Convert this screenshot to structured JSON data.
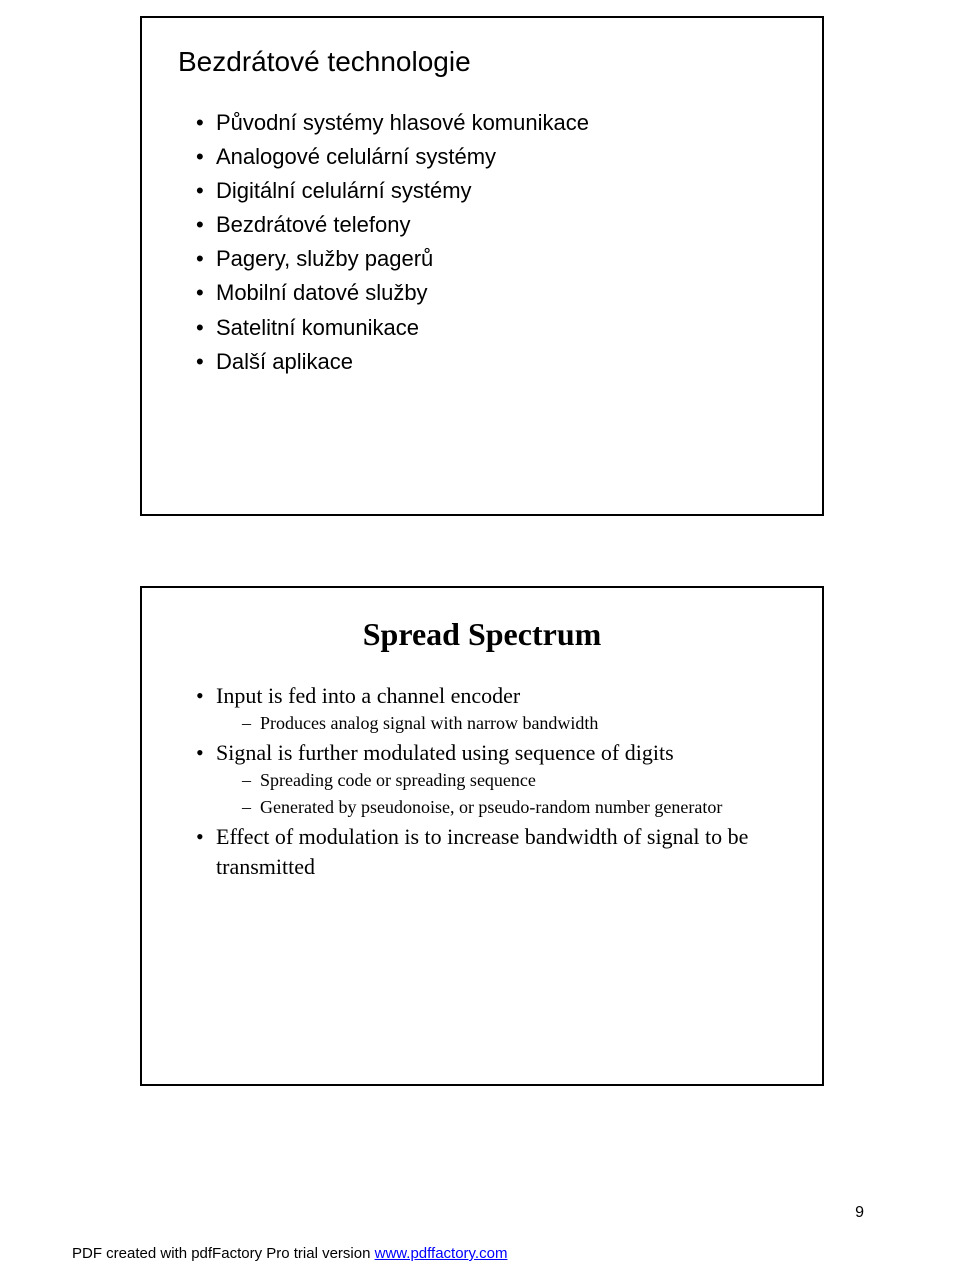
{
  "slide1": {
    "title": "Bezdrátové technologie",
    "items": [
      "Původní systémy hlasové komunikace",
      "Analogové celulární systémy",
      "Digitální celulární systémy",
      "Bezdrátové telefony",
      "Pagery, služby pagerů",
      "Mobilní datové služby",
      "Satelitní komunikace",
      "Další aplikace"
    ]
  },
  "slide2": {
    "title": "Spread Spectrum",
    "items": [
      {
        "text": "Input is fed into a channel encoder",
        "sub": [
          "Produces analog signal with narrow bandwidth"
        ]
      },
      {
        "text": "Signal is further modulated using sequence of digits",
        "sub": [
          "Spreading code or spreading sequence",
          "Generated by pseudonoise, or pseudo-random number generator"
        ]
      },
      {
        "text": "Effect of modulation is to increase bandwidth of signal to be transmitted",
        "sub": []
      }
    ]
  },
  "footer": {
    "prefix": "PDF created with pdfFactory Pro trial version ",
    "link_text": "www.pdffactory.com"
  },
  "page_number": "9"
}
